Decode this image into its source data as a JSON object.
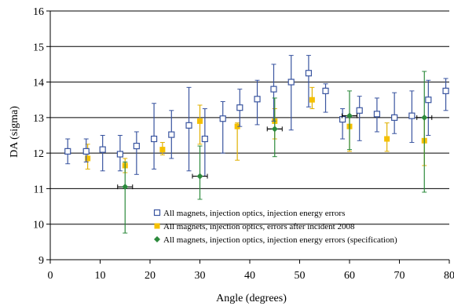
{
  "chart_data": {
    "type": "scatter",
    "title": "",
    "xlabel": "Angle (degrees)",
    "ylabel": "DA (sigma)",
    "xlim": [
      0,
      80
    ],
    "ylim": [
      9,
      16
    ],
    "x_ticks": [
      0,
      10,
      20,
      30,
      40,
      50,
      60,
      70,
      80
    ],
    "y_ticks": [
      9,
      10,
      11,
      12,
      13,
      14,
      15,
      16
    ],
    "grid": "horizontal",
    "legend_position": "bottom-right",
    "error_bars": true,
    "series": [
      {
        "name": "All magnets, injection optics, injection energy errors",
        "marker": "open-square",
        "color": "#3a55a0",
        "points": [
          {
            "x": 3.5,
            "y": 12.05,
            "lo": 11.7,
            "hi": 12.4
          },
          {
            "x": 7.2,
            "y": 12.05,
            "lo": 11.75,
            "hi": 12.4
          },
          {
            "x": 10.5,
            "y": 12.1,
            "lo": 11.5,
            "hi": 12.5
          },
          {
            "x": 14.0,
            "y": 11.97,
            "lo": 11.5,
            "hi": 12.5
          },
          {
            "x": 17.3,
            "y": 12.2,
            "lo": 11.4,
            "hi": 12.6
          },
          {
            "x": 20.8,
            "y": 12.4,
            "lo": 11.55,
            "hi": 13.4
          },
          {
            "x": 24.3,
            "y": 12.52,
            "lo": 11.85,
            "hi": 13.2
          },
          {
            "x": 27.8,
            "y": 12.78,
            "lo": 11.5,
            "hi": 13.85
          },
          {
            "x": 31.0,
            "y": 12.4,
            "lo": 11.35,
            "hi": 13.25
          },
          {
            "x": 34.6,
            "y": 12.97,
            "lo": 12.0,
            "hi": 13.45
          },
          {
            "x": 38.0,
            "y": 13.28,
            "lo": 12.75,
            "hi": 13.8
          },
          {
            "x": 41.5,
            "y": 13.52,
            "lo": 12.8,
            "hi": 14.05
          },
          {
            "x": 44.8,
            "y": 13.8,
            "lo": 12.9,
            "hi": 14.5
          },
          {
            "x": 48.3,
            "y": 14.0,
            "lo": 12.65,
            "hi": 14.75
          },
          {
            "x": 51.8,
            "y": 14.25,
            "lo": 13.3,
            "hi": 14.75
          },
          {
            "x": 55.2,
            "y": 13.75,
            "lo": 13.15,
            "hi": 13.95
          },
          {
            "x": 58.6,
            "y": 12.95,
            "lo": 12.4,
            "hi": 13.25
          },
          {
            "x": 62.0,
            "y": 13.2,
            "lo": 12.35,
            "hi": 13.6
          },
          {
            "x": 65.5,
            "y": 13.1,
            "lo": 12.6,
            "hi": 13.55
          },
          {
            "x": 69.0,
            "y": 13.0,
            "lo": 12.55,
            "hi": 13.7
          },
          {
            "x": 72.5,
            "y": 13.05,
            "lo": 12.3,
            "hi": 13.75
          },
          {
            "x": 75.8,
            "y": 13.5,
            "lo": 12.5,
            "hi": 14.05
          },
          {
            "x": 79.3,
            "y": 13.75,
            "lo": 13.2,
            "hi": 14.1
          }
        ]
      },
      {
        "name": "All magnets, injection optics, errors after incident 2008",
        "marker": "filled-square",
        "color": "#f5c000",
        "errorbar_color": "#e0b000",
        "points": [
          {
            "x": 7.5,
            "y": 11.85,
            "lo": 11.55,
            "hi": 12.25
          },
          {
            "x": 15.0,
            "y": 11.65,
            "lo": 11.45,
            "hi": 11.85
          },
          {
            "x": 22.5,
            "y": 12.1,
            "lo": 11.95,
            "hi": 12.3
          },
          {
            "x": 30.0,
            "y": 12.9,
            "lo": 12.25,
            "hi": 13.35
          },
          {
            "x": 37.5,
            "y": 12.75,
            "lo": 11.8,
            "hi": 12.85
          },
          {
            "x": 45.0,
            "y": 12.9,
            "lo": 12.4,
            "hi": 13.25
          },
          {
            "x": 52.5,
            "y": 13.5,
            "lo": 13.25,
            "hi": 13.85
          },
          {
            "x": 60.0,
            "y": 12.75,
            "lo": 12.05,
            "hi": 13.05
          },
          {
            "x": 67.5,
            "y": 12.4,
            "lo": 12.05,
            "hi": 12.85
          },
          {
            "x": 75.0,
            "y": 12.35,
            "lo": 11.65,
            "hi": 13.0
          }
        ]
      },
      {
        "name": "All magnets, injection optics, injection energy errors (specification)",
        "marker": "filled-diamond",
        "color": "#2c8a3c",
        "points": [
          {
            "x": 15.0,
            "y": 11.05,
            "lo": 9.75,
            "hi": 11.75,
            "xerr": 1.5
          },
          {
            "x": 30.0,
            "y": 11.35,
            "lo": 10.7,
            "hi": 12.2,
            "xerr": 1.5
          },
          {
            "x": 45.0,
            "y": 12.68,
            "lo": 11.9,
            "hi": 13.55,
            "xerr": 1.5
          },
          {
            "x": 60.0,
            "y": 13.05,
            "lo": 12.1,
            "hi": 13.75,
            "xerr": 1.5
          },
          {
            "x": 75.0,
            "y": 13.0,
            "lo": 10.9,
            "hi": 14.3,
            "xerr": 1.5
          }
        ]
      }
    ]
  }
}
